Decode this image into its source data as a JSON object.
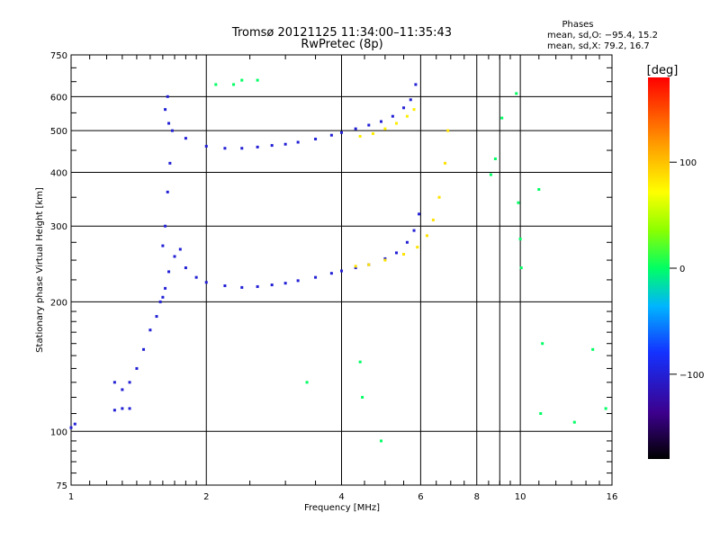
{
  "header": {
    "title_line1": "Tromsø 20121125 11:34:00–11:35:43",
    "title_line2": "RwPretec (8p)",
    "phases_title": "Phases",
    "phases_o": "mean, sd,O: −95.4, 15.2",
    "phases_x": "mean, sd,X:  79.2, 16.7"
  },
  "colorbar": {
    "unit_label": "[deg]",
    "ticks": [
      "100",
      "0",
      "−100"
    ]
  },
  "chart_data": {
    "type": "scatter",
    "title": "Tromsø 20121125 11:34:00–11:35:43",
    "subtitle": "RwPretec (8p)",
    "xlabel": "Frequency [MHz]",
    "ylabel": "Stationary phase Virtual Height [km]",
    "xscale": "log",
    "yscale": "log",
    "xlim": [
      1,
      16
    ],
    "ylim": [
      75,
      750
    ],
    "x_ticks": [
      "1",
      "2",
      "4",
      "6",
      "8",
      "10",
      "16"
    ],
    "y_ticks": [
      "75",
      "100",
      "200",
      "300",
      "400",
      "500",
      "600",
      "750"
    ],
    "grid": true,
    "color_scale": {
      "label": "[deg]",
      "range": [
        -180,
        180
      ],
      "ticks": [
        100,
        0,
        -100
      ]
    },
    "series": [
      {
        "values_desc": "O-mode F-layer trace",
        "phase": -100,
        "points": [
          [
            1.6,
            205
          ],
          [
            1.62,
            215
          ],
          [
            1.65,
            235
          ],
          [
            1.7,
            255
          ],
          [
            1.75,
            265
          ],
          [
            1.8,
            240
          ],
          [
            1.9,
            228
          ],
          [
            2.0,
            222
          ],
          [
            2.2,
            218
          ],
          [
            2.4,
            216
          ],
          [
            2.6,
            217
          ],
          [
            2.8,
            219
          ],
          [
            3.0,
            221
          ],
          [
            3.2,
            224
          ],
          [
            3.5,
            228
          ],
          [
            3.8,
            233
          ],
          [
            4.0,
            236
          ],
          [
            4.3,
            240
          ],
          [
            4.6,
            244
          ],
          [
            5.0,
            252
          ],
          [
            5.3,
            260
          ],
          [
            5.6,
            275
          ],
          [
            5.8,
            293
          ],
          [
            5.95,
            320
          ]
        ]
      },
      {
        "values_desc": "X-mode F-layer trace",
        "phase": 85,
        "points": [
          [
            4.3,
            242
          ],
          [
            4.6,
            244
          ],
          [
            5.0,
            250
          ],
          [
            5.5,
            258
          ],
          [
            5.9,
            268
          ],
          [
            6.2,
            285
          ],
          [
            6.4,
            310
          ],
          [
            6.6,
            350
          ],
          [
            6.8,
            420
          ],
          [
            6.9,
            500
          ]
        ]
      },
      {
        "values_desc": "O-mode upper trace",
        "phase": -100,
        "points": [
          [
            1.65,
            520
          ],
          [
            1.8,
            480
          ],
          [
            2.0,
            460
          ],
          [
            2.2,
            455
          ],
          [
            2.4,
            455
          ],
          [
            2.6,
            458
          ],
          [
            2.8,
            462
          ],
          [
            3.0,
            465
          ],
          [
            3.2,
            470
          ],
          [
            3.5,
            478
          ],
          [
            3.8,
            488
          ],
          [
            4.0,
            495
          ],
          [
            4.3,
            505
          ],
          [
            4.6,
            515
          ],
          [
            4.9,
            525
          ],
          [
            5.2,
            540
          ],
          [
            5.5,
            565
          ],
          [
            5.7,
            590
          ],
          [
            5.85,
            640
          ]
        ]
      },
      {
        "values_desc": "X-mode upper trace",
        "phase": 80,
        "points": [
          [
            4.4,
            485
          ],
          [
            4.7,
            492
          ],
          [
            5.0,
            505
          ],
          [
            5.3,
            520
          ],
          [
            5.6,
            540
          ],
          [
            5.8,
            560
          ]
        ]
      },
      {
        "values_desc": "Low-frequency E/Es trace",
        "phase": -100,
        "points": [
          [
            1.0,
            102
          ],
          [
            1.02,
            104
          ],
          [
            1.25,
            112
          ],
          [
            1.3,
            113
          ],
          [
            1.35,
            113
          ],
          [
            1.25,
            130
          ],
          [
            1.3,
            125
          ],
          [
            1.35,
            130
          ],
          [
            1.4,
            140
          ],
          [
            1.45,
            155
          ],
          [
            1.5,
            172
          ],
          [
            1.55,
            185
          ],
          [
            1.58,
            200
          ],
          [
            1.6,
            270
          ],
          [
            1.62,
            300
          ],
          [
            1.64,
            360
          ],
          [
            1.66,
            420
          ],
          [
            1.68,
            500
          ],
          [
            1.62,
            560
          ],
          [
            1.64,
            600
          ]
        ]
      },
      {
        "values_desc": "Scattered echoes",
        "phase": 0,
        "points": [
          [
            2.1,
            640
          ],
          [
            2.4,
            655
          ],
          [
            2.6,
            655
          ],
          [
            2.3,
            640
          ],
          [
            4.9,
            95
          ],
          [
            4.4,
            145
          ],
          [
            4.45,
            120
          ],
          [
            3.35,
            130
          ],
          [
            9.8,
            610
          ],
          [
            9.9,
            340
          ],
          [
            10.0,
            280
          ],
          [
            10.05,
            240
          ],
          [
            11.0,
            365
          ],
          [
            11.2,
            160
          ],
          [
            11.1,
            110
          ],
          [
            14.5,
            155
          ],
          [
            15.5,
            113
          ],
          [
            13.2,
            105
          ],
          [
            8.8,
            430
          ],
          [
            8.6,
            395
          ],
          [
            9.1,
            535
          ]
        ]
      }
    ]
  }
}
